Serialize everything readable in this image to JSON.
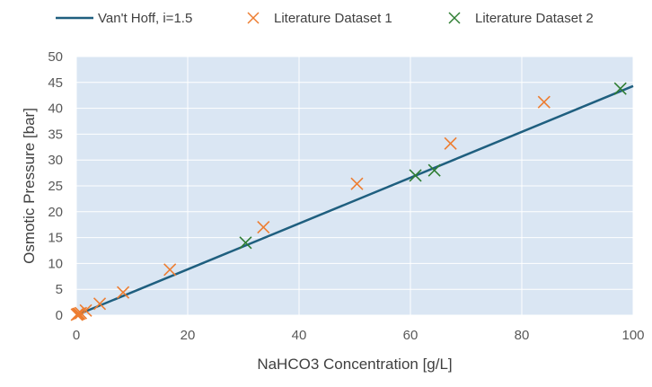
{
  "chart_data": {
    "type": "scatter",
    "title": "",
    "xlabel": "NaHCO3 Concentration [g/L]",
    "ylabel": "Osmotic Pressure [bar]",
    "xlim": [
      0,
      100
    ],
    "ylim": [
      0,
      50
    ],
    "x_ticks": [
      "0",
      "20",
      "40",
      "60",
      "80",
      "100"
    ],
    "y_ticks": [
      "0",
      "5",
      "10",
      "15",
      "20",
      "25",
      "30",
      "35",
      "40",
      "45",
      "50"
    ],
    "grid": true,
    "legend_position": "top",
    "plot_background": "#dae6f3",
    "series": [
      {
        "name": "Van't Hoff, i=1.5",
        "kind": "line",
        "color": "#1f5f7f",
        "x": [
          0,
          100
        ],
        "y": [
          0,
          44.3
        ]
      },
      {
        "name": "Literature Dataset 1",
        "kind": "x-marker",
        "color": "#ed7d31",
        "x": [
          0.1,
          0.3,
          0.5,
          0.8,
          1.7,
          4.2,
          8.4,
          16.8,
          33.6,
          50.4,
          67.2,
          84.0
        ],
        "y": [
          0.1,
          0.2,
          0.3,
          0.4,
          0.9,
          2.2,
          4.4,
          8.8,
          17.0,
          25.4,
          33.2,
          41.2
        ]
      },
      {
        "name": "Literature Dataset 2",
        "kind": "x-marker",
        "color": "#2e7d32",
        "x": [
          30.4,
          60.9,
          64.3,
          97.7
        ],
        "y": [
          14.0,
          27.0,
          28.0,
          43.8
        ]
      }
    ]
  }
}
